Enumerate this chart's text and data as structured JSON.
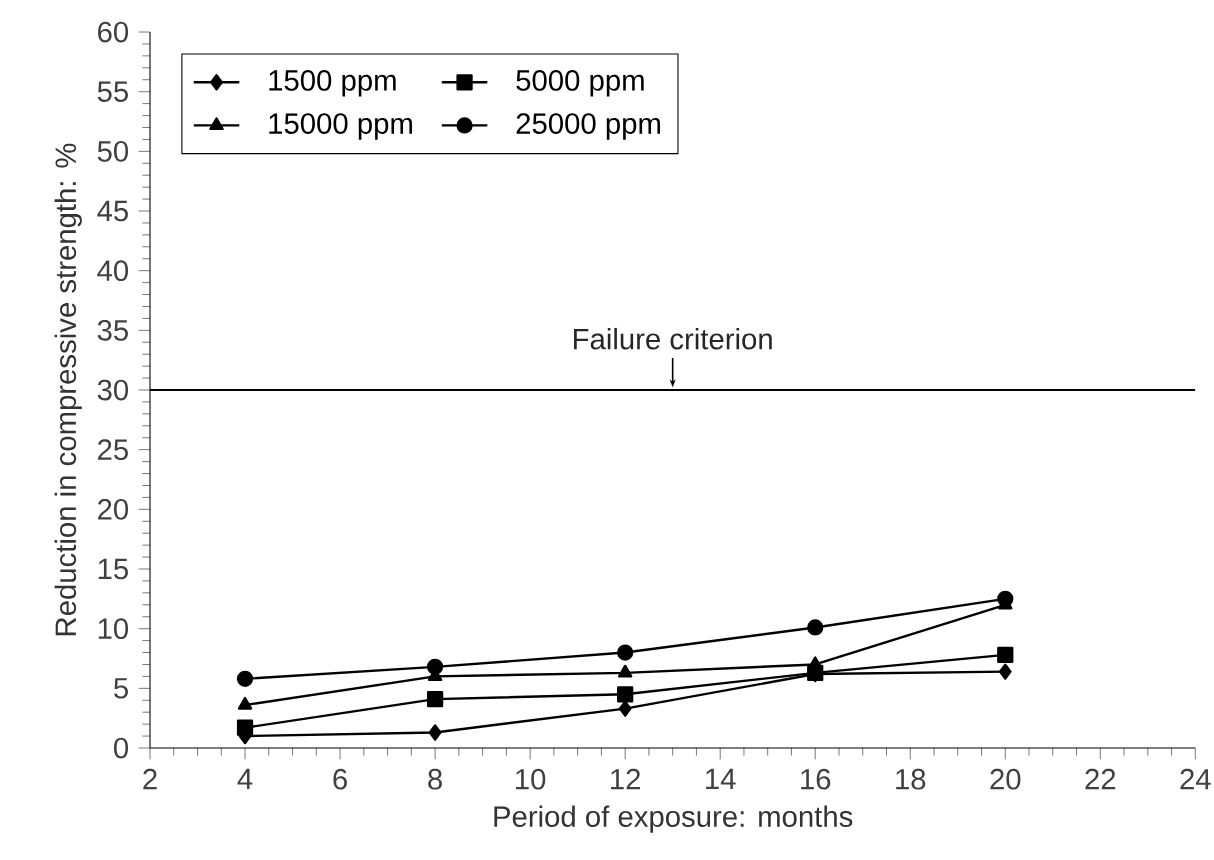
{
  "chart_data": {
    "type": "line",
    "xlabel": "Period of exposure: months",
    "ylabel": "Reduction in compressive strength: %",
    "x": [
      4,
      8,
      12,
      16,
      20
    ],
    "series": [
      {
        "name": "1500 ppm",
        "color": "#000000",
        "marker": "diamond",
        "values": [
          1.0,
          1.3,
          3.3,
          6.2,
          6.4
        ]
      },
      {
        "name": "5000 ppm",
        "color": "#000000",
        "marker": "square",
        "values": [
          1.7,
          4.1,
          4.5,
          6.3,
          7.8
        ]
      },
      {
        "name": "15000 ppm",
        "color": "#000000",
        "marker": "triangle",
        "values": [
          3.6,
          6.0,
          6.3,
          7.0,
          12.0
        ]
      },
      {
        "name": "25000 ppm",
        "color": "#000000",
        "marker": "circle",
        "values": [
          5.8,
          6.8,
          8.0,
          10.1,
          12.5
        ]
      }
    ],
    "xlim": [
      2,
      24
    ],
    "xticks": [
      2,
      4,
      6,
      8,
      10,
      12,
      14,
      16,
      18,
      20,
      22,
      24
    ],
    "ylim": [
      0,
      60
    ],
    "yticks": [
      0,
      5,
      10,
      15,
      20,
      25,
      30,
      35,
      40,
      45,
      50,
      55,
      60
    ],
    "ref_lines": [
      {
        "axis": "y",
        "value": 30,
        "label": "Failure criterion",
        "color": "#000000",
        "line_style": "solid"
      }
    ],
    "grid": false,
    "legend": "top left",
    "line_style": "solid"
  }
}
